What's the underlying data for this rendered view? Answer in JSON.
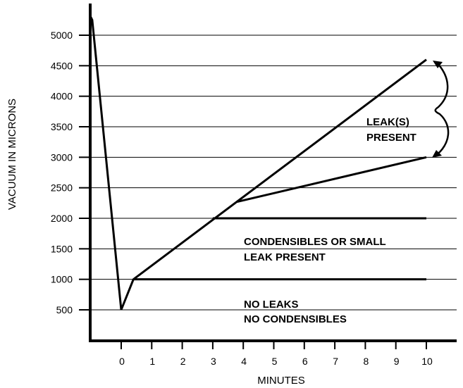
{
  "chart_data": {
    "type": "line",
    "xlabel": "MINUTES",
    "ylabel": "VACUUM IN MICRONS",
    "xlim": [
      -1,
      11
    ],
    "ylim": [
      0,
      5500
    ],
    "grid": "horizontal",
    "x_ticks": [
      0,
      1,
      2,
      3,
      4,
      5,
      6,
      7,
      8,
      9,
      10
    ],
    "x_tick_labels": [
      "0",
      "1",
      "2",
      "3",
      "4",
      "5",
      "6",
      "7",
      "8",
      "9",
      "10"
    ],
    "y_ticks": [
      500,
      1000,
      1500,
      2000,
      2500,
      3000,
      3500,
      4000,
      4500,
      5000
    ],
    "y_tick_labels": [
      "500",
      "1000",
      "1500",
      "2000",
      "2500",
      "3000",
      "3500",
      "4000",
      "4500",
      "5000"
    ],
    "series": [
      {
        "x": [
          -1,
          -0.95,
          0,
          0.4,
          10
        ],
        "y": [
          5300,
          5250,
          500,
          1000,
          4600
        ]
      },
      {
        "x": [
          3.0,
          10
        ],
        "y": [
          2000,
          2000
        ]
      },
      {
        "x": [
          3.8,
          10
        ],
        "y": [
          2270,
          3000
        ]
      },
      {
        "x": [
          0.4,
          10
        ],
        "y": [
          1000,
          1000
        ]
      }
    ],
    "annotations": [
      {
        "lines": [
          "LEAK(S)",
          "PRESENT"
        ]
      },
      {
        "lines": [
          "CONDENSIBLES OR SMALL",
          "LEAK PRESENT"
        ]
      },
      {
        "lines": [
          "NO LEAKS",
          "NO CONDENSIBLES"
        ]
      }
    ]
  }
}
